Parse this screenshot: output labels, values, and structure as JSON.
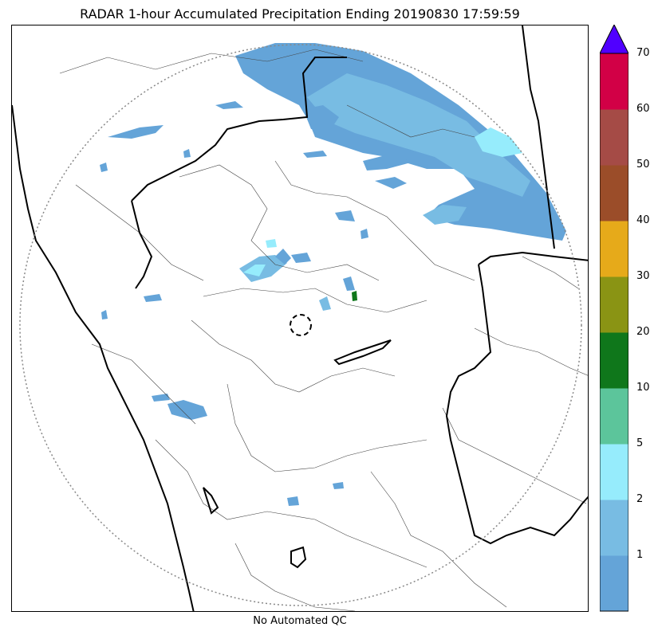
{
  "title": "RADAR 1-hour Accumulated Precipitation Ending 20190830 17:59:59",
  "footer": "No Automated QC",
  "colorbar": {
    "colors": [
      "#64a4d8",
      "#78bce3",
      "#96ecfc",
      "#5cc59b",
      "#0f771b",
      "#8a9414",
      "#e6aa1a",
      "#9b4d29",
      "#a54b46",
      "#d20046"
    ],
    "extend_color": "#5000ff",
    "ticks": [
      "1",
      "2",
      "5",
      "10",
      "20",
      "30",
      "40",
      "50",
      "60",
      "70"
    ]
  },
  "map": {
    "radar_range_ring": "dotted-gray-circle",
    "radar_center_marker": "dashed-black-circle",
    "precip_colors": {
      "light": "#64a4d8",
      "medium": "#78bce3",
      "cyan": "#96ecfc",
      "green": "#0f771b"
    }
  }
}
